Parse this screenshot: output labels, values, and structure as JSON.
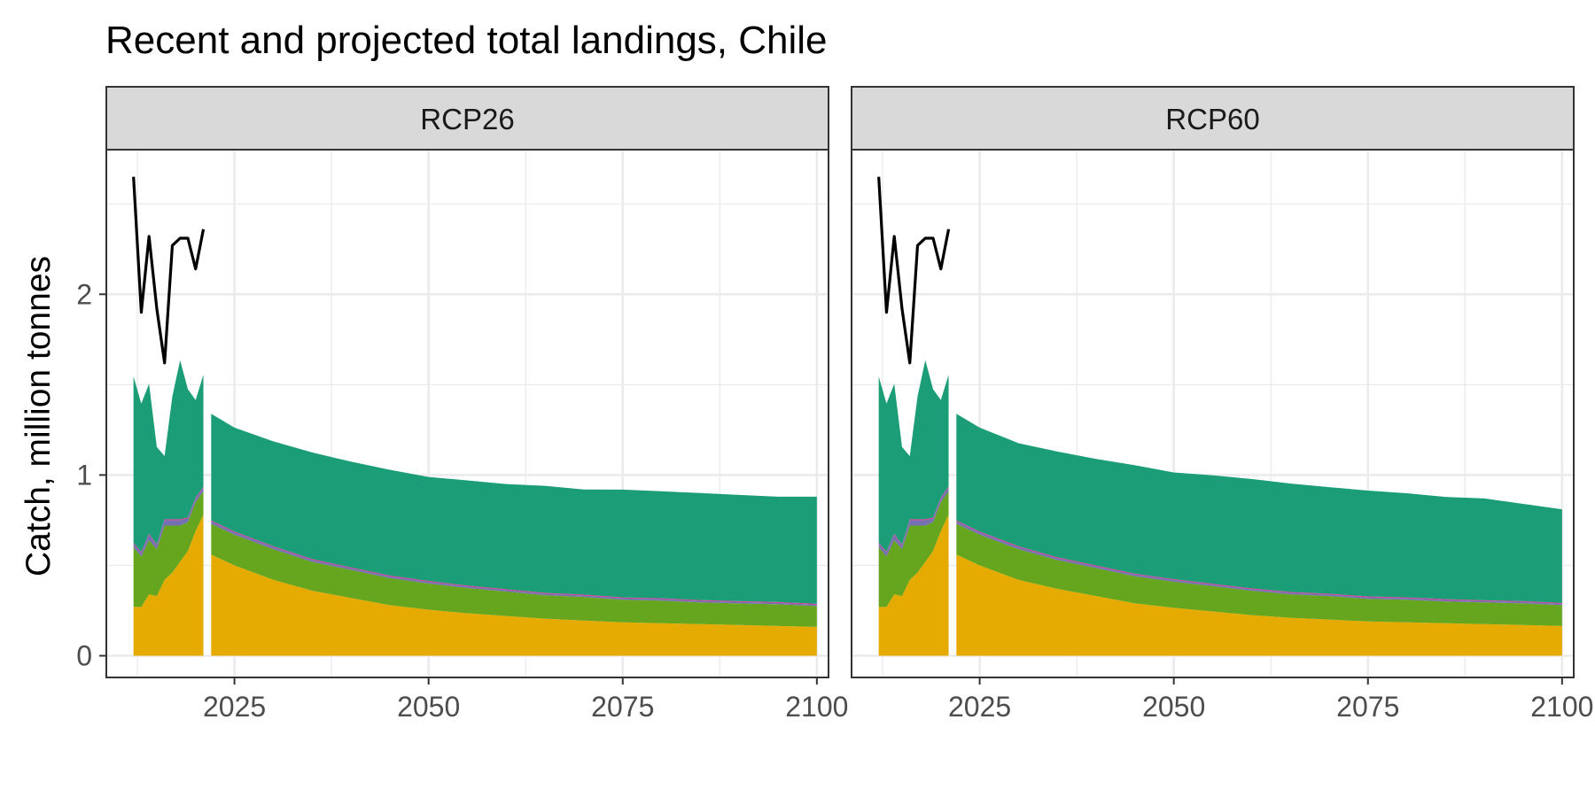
{
  "chart_data": {
    "type": "area",
    "title": "Recent and projected total landings, Chile",
    "xlabel": "",
    "ylabel": "Catch, million tonnes",
    "xlim": [
      2008.5,
      2101.5
    ],
    "ylim": [
      -0.12,
      2.8
    ],
    "x_ticks": [
      2025,
      2050,
      2075,
      2100
    ],
    "y_ticks": [
      0,
      1,
      2
    ],
    "grid": true,
    "legend": "none",
    "colors": {
      "orange": "#E6AB02",
      "green": "#66A61E",
      "purple": "#7570B3",
      "pink": "#E7298A",
      "teal": "#1B9E77",
      "line": "#000000"
    },
    "panels": [
      {
        "name": "RCP26",
        "recent": {
          "years": [
            2012,
            2013,
            2014,
            2015,
            2016,
            2017,
            2018,
            2019,
            2020,
            2021
          ],
          "total_landings": [
            2.65,
            1.9,
            2.32,
            1.92,
            1.62,
            2.27,
            2.31,
            2.31,
            2.14,
            2.36
          ],
          "series": [
            {
              "color": "orange",
              "values": [
                0.27,
                0.27,
                0.34,
                0.33,
                0.42,
                0.46,
                0.52,
                0.58,
                0.69,
                0.78
              ]
            },
            {
              "color": "green",
              "values": [
                0.33,
                0.28,
                0.3,
                0.26,
                0.3,
                0.26,
                0.2,
                0.16,
                0.16,
                0.13
              ]
            },
            {
              "color": "purple",
              "values": [
                0.02,
                0.02,
                0.03,
                0.02,
                0.03,
                0.03,
                0.03,
                0.02,
                0.02,
                0.02
              ]
            },
            {
              "color": "pink",
              "values": [
                0.005,
                0.005,
                0.005,
                0.005,
                0.005,
                0.005,
                0.005,
                0.005,
                0.005,
                0.005
              ]
            },
            {
              "color": "teal",
              "values": [
                0.92,
                0.82,
                0.83,
                0.54,
                0.35,
                0.68,
                0.88,
                0.71,
                0.54,
                0.62
              ]
            }
          ]
        },
        "projected": {
          "years": [
            2022,
            2025,
            2030,
            2035,
            2040,
            2045,
            2050,
            2055,
            2060,
            2065,
            2070,
            2075,
            2080,
            2085,
            2090,
            2095,
            2100
          ],
          "series": [
            {
              "color": "orange",
              "values": [
                0.56,
                0.5,
                0.42,
                0.36,
                0.32,
                0.28,
                0.255,
                0.235,
                0.22,
                0.205,
                0.195,
                0.185,
                0.18,
                0.175,
                0.17,
                0.165,
                0.16
              ]
            },
            {
              "color": "green",
              "values": [
                0.17,
                0.17,
                0.17,
                0.16,
                0.155,
                0.15,
                0.145,
                0.14,
                0.135,
                0.13,
                0.13,
                0.125,
                0.125,
                0.12,
                0.12,
                0.12,
                0.115
              ]
            },
            {
              "color": "purple",
              "values": [
                0.015,
                0.013,
                0.012,
                0.011,
                0.01,
                0.01,
                0.01,
                0.009,
                0.009,
                0.009,
                0.009,
                0.009,
                0.009,
                0.009,
                0.008,
                0.008,
                0.008
              ]
            },
            {
              "color": "pink",
              "values": [
                0.004,
                0.004,
                0.004,
                0.004,
                0.004,
                0.004,
                0.004,
                0.004,
                0.004,
                0.004,
                0.004,
                0.004,
                0.004,
                0.004,
                0.004,
                0.004,
                0.004
              ]
            },
            {
              "color": "teal",
              "values": [
                0.59,
                0.575,
                0.58,
                0.59,
                0.585,
                0.585,
                0.575,
                0.582,
                0.582,
                0.592,
                0.582,
                0.596,
                0.592,
                0.592,
                0.588,
                0.583,
                0.593
              ]
            }
          ]
        }
      },
      {
        "name": "RCP60",
        "recent": {
          "years": [
            2012,
            2013,
            2014,
            2015,
            2016,
            2017,
            2018,
            2019,
            2020,
            2021
          ],
          "total_landings": [
            2.65,
            1.9,
            2.32,
            1.92,
            1.62,
            2.27,
            2.31,
            2.31,
            2.14,
            2.36
          ],
          "series": [
            {
              "color": "orange",
              "values": [
                0.27,
                0.27,
                0.34,
                0.33,
                0.42,
                0.46,
                0.52,
                0.58,
                0.69,
                0.78
              ]
            },
            {
              "color": "green",
              "values": [
                0.33,
                0.28,
                0.3,
                0.26,
                0.3,
                0.26,
                0.2,
                0.16,
                0.16,
                0.13
              ]
            },
            {
              "color": "purple",
              "values": [
                0.02,
                0.02,
                0.03,
                0.02,
                0.03,
                0.03,
                0.03,
                0.02,
                0.02,
                0.02
              ]
            },
            {
              "color": "pink",
              "values": [
                0.005,
                0.005,
                0.005,
                0.005,
                0.005,
                0.005,
                0.005,
                0.005,
                0.005,
                0.005
              ]
            },
            {
              "color": "teal",
              "values": [
                0.92,
                0.82,
                0.83,
                0.54,
                0.35,
                0.68,
                0.88,
                0.71,
                0.54,
                0.62
              ]
            }
          ]
        },
        "projected": {
          "years": [
            2022,
            2025,
            2030,
            2035,
            2040,
            2045,
            2050,
            2055,
            2060,
            2065,
            2070,
            2075,
            2080,
            2085,
            2090,
            2095,
            2100
          ],
          "series": [
            {
              "color": "orange",
              "values": [
                0.56,
                0.5,
                0.42,
                0.37,
                0.33,
                0.29,
                0.265,
                0.245,
                0.225,
                0.21,
                0.2,
                0.19,
                0.185,
                0.18,
                0.175,
                0.17,
                0.165
              ]
            },
            {
              "color": "green",
              "values": [
                0.17,
                0.17,
                0.17,
                0.16,
                0.155,
                0.15,
                0.145,
                0.14,
                0.135,
                0.13,
                0.13,
                0.125,
                0.125,
                0.12,
                0.12,
                0.12,
                0.115
              ]
            },
            {
              "color": "purple",
              "values": [
                0.015,
                0.013,
                0.012,
                0.011,
                0.01,
                0.01,
                0.01,
                0.009,
                0.009,
                0.009,
                0.009,
                0.009,
                0.009,
                0.009,
                0.008,
                0.008,
                0.008
              ]
            },
            {
              "color": "pink",
              "values": [
                0.004,
                0.004,
                0.004,
                0.004,
                0.004,
                0.004,
                0.004,
                0.004,
                0.004,
                0.004,
                0.004,
                0.004,
                0.004,
                0.004,
                0.004,
                0.004,
                0.004
              ]
            },
            {
              "color": "teal",
              "values": [
                0.59,
                0.575,
                0.57,
                0.585,
                0.59,
                0.6,
                0.59,
                0.6,
                0.605,
                0.6,
                0.59,
                0.586,
                0.576,
                0.566,
                0.563,
                0.538,
                0.518
              ]
            }
          ]
        }
      }
    ]
  }
}
